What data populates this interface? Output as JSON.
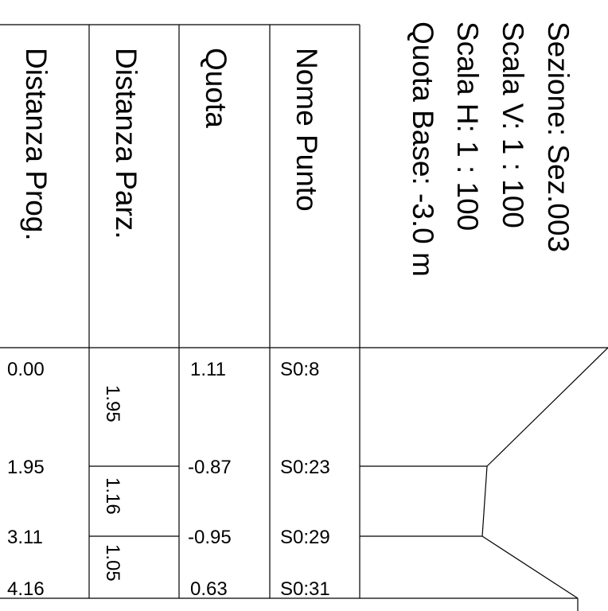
{
  "section_info": {
    "sezione": "Sezione: Sez.003",
    "scala_v": "Scala V: 1 : 100",
    "scala_h": "Scala H: 1 : 100",
    "quota_base": "Quota Base: -3.0 m"
  },
  "table": {
    "headers": {
      "distanza_prog": "Distanza Prog.",
      "distanza_parz": "Distanza Parz.",
      "quota": "Quota",
      "nome_punto": "Nome Punto"
    },
    "rows": [
      {
        "prog": "0.00",
        "quota": "1.11",
        "nome": "S0:8"
      },
      {
        "prog": "1.95",
        "quota": "-0.87",
        "nome": "S0:23"
      },
      {
        "prog": "3.11",
        "quota": "-0.95",
        "nome": "S0:29"
      },
      {
        "prog": "4.16",
        "quota": "0.63",
        "nome": "S0:31"
      }
    ],
    "partial_distances": [
      "1.95",
      "1.16",
      "1.05"
    ]
  }
}
